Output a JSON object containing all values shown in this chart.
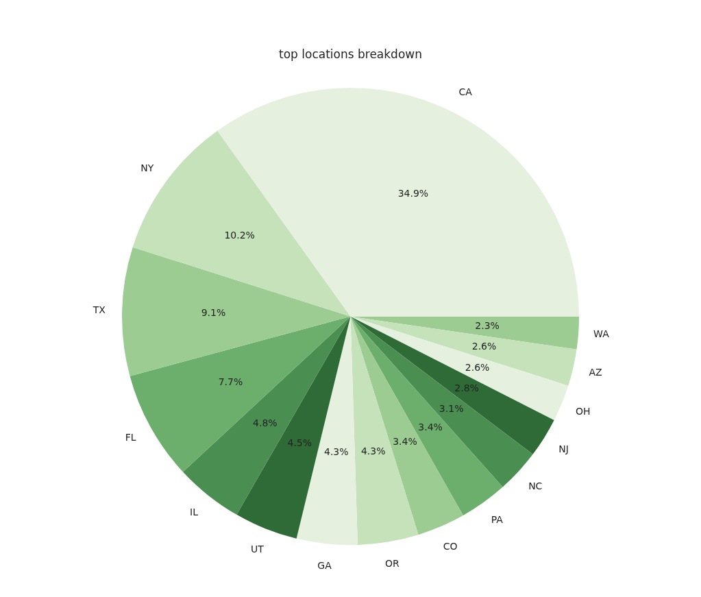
{
  "chart_data": {
    "type": "pie",
    "title": "top locations breakdown",
    "categories": [
      "CA",
      "NY",
      "TX",
      "FL",
      "IL",
      "UT",
      "GA",
      "OR",
      "CO",
      "PA",
      "NC",
      "NJ",
      "OH",
      "AZ",
      "WA"
    ],
    "values": [
      34.9,
      10.2,
      9.1,
      7.7,
      4.8,
      4.5,
      4.3,
      4.3,
      3.4,
      3.4,
      3.1,
      2.8,
      2.6,
      2.6,
      2.3
    ],
    "value_labels": [
      "34.9%",
      "10.2%",
      "9.1%",
      "7.7%",
      "4.8%",
      "4.5%",
      "4.3%",
      "4.3%",
      "3.4%",
      "3.4%",
      "3.1%",
      "2.8%",
      "2.6%",
      "2.6%",
      "2.3%"
    ],
    "colors": [
      "#e5f1de",
      "#c5e2bb",
      "#9ccc91",
      "#6caf6c",
      "#4a8e52",
      "#2f6b36",
      "#e5f1de",
      "#c5e2bb",
      "#9ccc91",
      "#6caf6c",
      "#4a8e52",
      "#2f6b36",
      "#e5f1de",
      "#c5e2bb",
      "#9ccc91"
    ],
    "legend": false
  }
}
